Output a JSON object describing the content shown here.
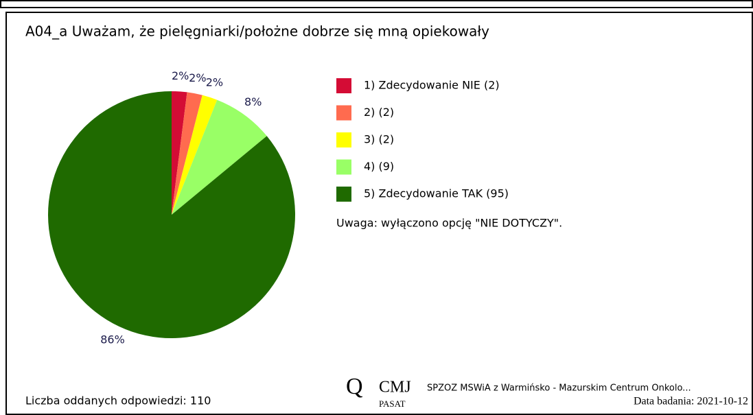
{
  "chart_data": {
    "type": "pie",
    "title": "A04_a Uważam, że pielęgniarki/położne dobrze się mną opiekowały",
    "categories": [
      "1) Zdecydowanie NIE (2)",
      "2)  (2)",
      "3)  (2)",
      "4)  (9)",
      "5) Zdecydowanie TAK (95)"
    ],
    "values": [
      2,
      2,
      2,
      8,
      86
    ],
    "value_labels": [
      "2%",
      "2%",
      "2%",
      "8%",
      "86%"
    ],
    "colors": [
      "#d40c35",
      "#ff6b4f",
      "#ffff00",
      "#99ff66",
      "#1f6a00"
    ],
    "note": "Uwaga: wyłączono opcję \"NIE DOTYCZY\"."
  },
  "footer": {
    "responses": "Liczba oddanych odpowiedzi: 110",
    "logo_main": "CMJ",
    "logo_sub": "PASAT",
    "institution": "SPZOZ MSWiA z Warmińsko - Mazurskim Centrum Onkolo...",
    "date": "Data badania: 2021-10-12"
  }
}
